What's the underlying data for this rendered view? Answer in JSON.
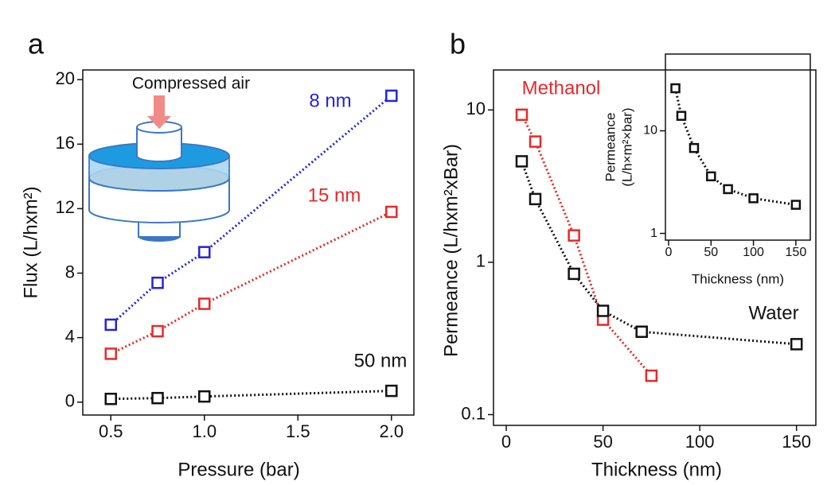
{
  "chart_data": [
    {
      "type": "line",
      "panel_label": "a",
      "annotation": "Compressed air",
      "x_label": "Pressure (bar)",
      "y_label": "Flux (L/hxm²)",
      "x": [
        0.5,
        0.75,
        1,
        2
      ],
      "xlim": [
        0.35,
        2.12
      ],
      "xticks": [
        0.5,
        {
          "value": 1,
          "label": "1.0"
        },
        1.5,
        {
          "value": 2,
          "label": "2.0"
        }
      ],
      "ylim": [
        -0.8,
        20.6
      ],
      "yticks": [
        0,
        4,
        8,
        12,
        16,
        20
      ],
      "series": [
        {
          "name": "8 nm",
          "color": "#2424d8",
          "values": [
            4.8,
            7.4,
            9.3,
            19.0
          ]
        },
        {
          "name": "15 nm",
          "color": "#e42a2a",
          "values": [
            3.0,
            4.4,
            6.1,
            11.8
          ]
        },
        {
          "name": "50 nm",
          "color": "#111111",
          "values": [
            0.2,
            0.25,
            0.35,
            0.7
          ]
        }
      ]
    },
    {
      "type": "line",
      "panel_label": "b",
      "log_y": true,
      "x_label": "Thickness (nm)",
      "y_label": "Permeance (L/hxm²xBar)",
      "xlim": [
        -6.6,
        160
      ],
      "xticks": [
        0,
        50,
        100,
        150
      ],
      "ylim": [
        0.085,
        18.3
      ],
      "yticks": [
        0.1,
        1,
        10
      ],
      "series": [
        {
          "name": "Methanol",
          "color": "#e42a2a",
          "x": [
            8,
            15,
            35,
            50,
            75
          ],
          "values": [
            9.3,
            6.2,
            1.5,
            0.42,
            0.18
          ]
        },
        {
          "name": "Water",
          "color": "#111111",
          "x": [
            8,
            15,
            35,
            50,
            70,
            150
          ],
          "values": [
            4.6,
            2.6,
            0.84,
            0.48,
            0.35,
            0.29
          ]
        }
      ]
    },
    {
      "type": "line",
      "log_y": true,
      "x_label": "Thickness (nm)",
      "y_label": [
        "Permeance",
        "(L/h×m²×bar)"
      ],
      "xlim": [
        -3.75,
        167
      ],
      "xticks": [
        0,
        50,
        100,
        150
      ],
      "ylim": [
        0.86,
        56
      ],
      "yticks": [
        1,
        10
      ],
      "series": [
        {
          "color": "#111111",
          "x": [
            8,
            15,
            30,
            50,
            70,
            100,
            150
          ],
          "values": [
            26,
            14,
            6.8,
            3.6,
            2.7,
            2.2,
            1.9
          ]
        }
      ]
    }
  ]
}
